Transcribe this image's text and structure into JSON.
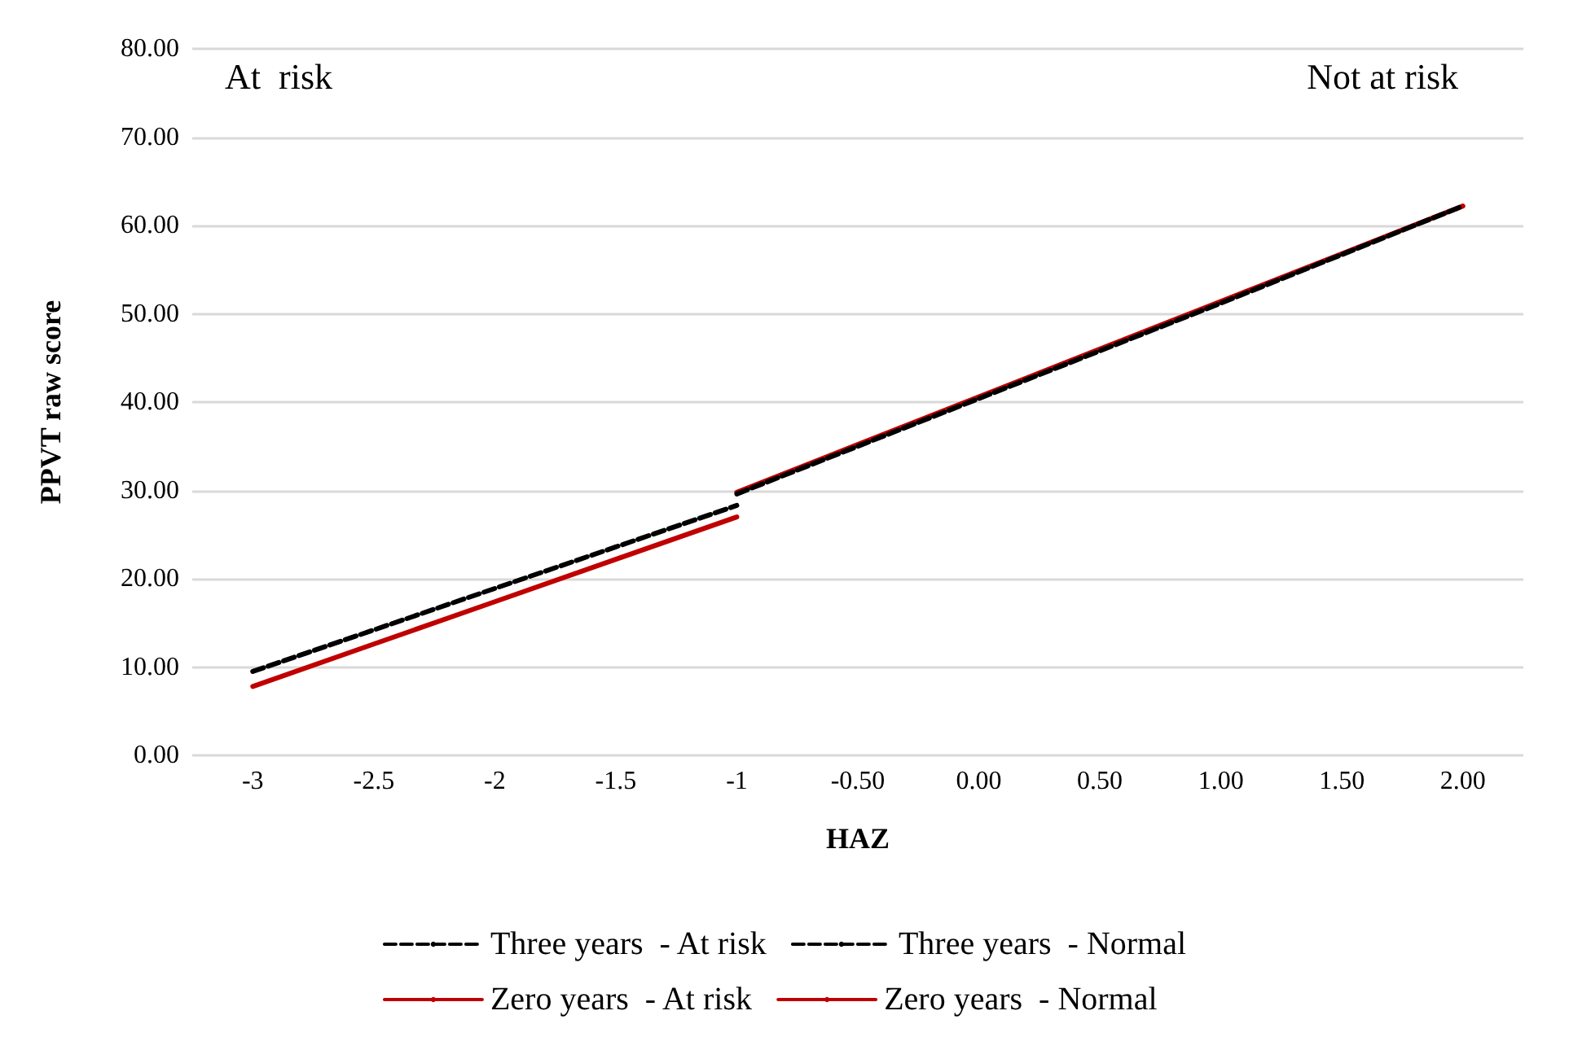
{
  "chart_data": {
    "type": "line",
    "xlabel": "HAZ",
    "ylabel": "PPVT raw score",
    "categories": [
      "-3",
      "-2.5",
      "-2",
      "-1.5",
      "-1",
      "-0.50",
      "0.00",
      "0.50",
      "1.00",
      "1.50",
      "2.00"
    ],
    "series": [
      {
        "name": "Three years  - At risk",
        "color": "#000000",
        "line_style": "dashed",
        "values": [
          9.5,
          14.2,
          18.9,
          23.6,
          28.3,
          null,
          null,
          null,
          null,
          null,
          null
        ]
      },
      {
        "name": "Three years  - Normal",
        "color": "#000000",
        "line_style": "dashed",
        "values": [
          null,
          null,
          null,
          null,
          29.6,
          35.0,
          40.4,
          45.8,
          51.2,
          56.7,
          62.2
        ]
      },
      {
        "name": "Zero years  - At risk",
        "color": "#c00000",
        "line_style": "solid",
        "values": [
          7.8,
          12.6,
          17.4,
          22.2,
          27.0,
          null,
          null,
          null,
          null,
          null,
          null
        ]
      },
      {
        "name": "Zero years  - Normal",
        "color": "#c00000",
        "line_style": "solid",
        "values": [
          null,
          null,
          null,
          null,
          29.8,
          35.2,
          40.6,
          46.0,
          51.4,
          56.8,
          62.2
        ]
      }
    ],
    "ylim": [
      0,
      80
    ],
    "yticks": [
      {
        "value": 0,
        "label": "0.00"
      },
      {
        "value": 10,
        "label": "10.00"
      },
      {
        "value": 20,
        "label": "20.00"
      },
      {
        "value": 30,
        "label": "30.00"
      },
      {
        "value": 40,
        "label": "40.00"
      },
      {
        "value": 50,
        "label": "50.00"
      },
      {
        "value": 60,
        "label": "60.00"
      },
      {
        "value": 70,
        "label": "70.00"
      },
      {
        "value": 80,
        "label": "80.00"
      }
    ],
    "grid": "y",
    "legend": "bottom",
    "marker": "none",
    "annotations": [
      "At  risk",
      "Not at risk"
    ]
  }
}
